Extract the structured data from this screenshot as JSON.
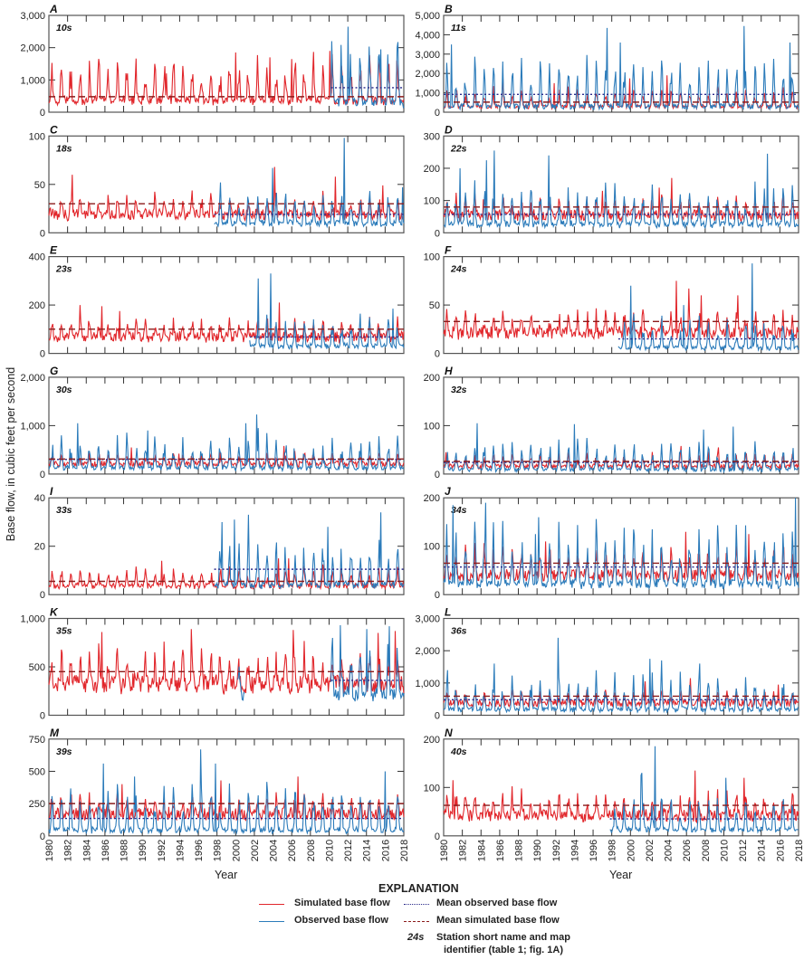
{
  "chart_data": {
    "type": "line",
    "ylabel": "Base flow, in cubic feet per second",
    "xlabel": "Year",
    "xlim": [
      1980,
      2018
    ],
    "xticks": [
      1980,
      1982,
      1984,
      1986,
      1988,
      1990,
      1992,
      1994,
      1996,
      1998,
      2000,
      2002,
      2004,
      2006,
      2008,
      2010,
      2012,
      2014,
      2016,
      2018
    ],
    "colors": {
      "simulated": "#e1262b",
      "observed": "#2b7bba",
      "mean_observed": "#2a2a8a",
      "mean_simulated": "#8b1a1a"
    },
    "panels": [
      {
        "letter": "A",
        "station": "10s",
        "ylim": [
          0,
          3000
        ],
        "yticks": [
          0,
          1000,
          2000,
          3000
        ],
        "ytick_labels": [
          "0",
          "1,000",
          "2,000",
          "3,000"
        ],
        "sim_base": 350,
        "sim_amp": 1300,
        "sim_peaks": [
          1700,
          1600,
          1850,
          1650,
          1250,
          1200,
          1100,
          1900,
          1200
        ],
        "mean_simulated": 480,
        "obs_start": 2010.2,
        "obs_end": 2018,
        "obs_base": 250,
        "obs_amp": 1800,
        "obs_peaks": [
          2200,
          1950,
          2650
        ],
        "mean_observed": 760,
        "obs_gap": null
      },
      {
        "letter": "B",
        "station": "11s",
        "ylim": [
          0,
          5000
        ],
        "yticks": [
          0,
          1000,
          2000,
          3000,
          4000,
          5000
        ],
        "ytick_labels": [
          "0",
          "1,000",
          "2,000",
          "3,000",
          "4,000",
          "5,000"
        ],
        "sim_base": 300,
        "sim_amp": 900,
        "sim_peaks": [
          1900,
          1750,
          1950,
          1500
        ],
        "mean_simulated": 520,
        "obs_start": 1980,
        "obs_end": 2018,
        "obs_base": 200,
        "obs_amp": 2200,
        "obs_peaks": [
          3500,
          3600,
          4350,
          4450,
          3600
        ],
        "mean_observed": 920,
        "obs_gap": null
      },
      {
        "letter": "C",
        "station": "18s",
        "ylim": [
          0,
          100
        ],
        "yticks": [
          0,
          50,
          100
        ],
        "ytick_labels": [
          "0",
          "50",
          "100"
        ],
        "sim_base": 22,
        "sim_amp": 18,
        "sim_peaks": [
          68,
          60,
          58,
          49
        ],
        "mean_simulated": 30,
        "obs_start": 1997.7,
        "obs_end": 2018,
        "obs_base": 10,
        "obs_amp": 30,
        "obs_peaks": [
          52,
          67,
          98,
          47
        ],
        "mean_observed": 19,
        "obs_gap": null
      },
      {
        "letter": "D",
        "station": "22s",
        "ylim": [
          0,
          300
        ],
        "yticks": [
          0,
          100,
          200,
          300
        ],
        "ytick_labels": [
          "0",
          "100",
          "200",
          "300"
        ],
        "sim_base": 65,
        "sim_amp": 50,
        "sim_peaks": [
          170,
          140,
          130
        ],
        "mean_simulated": 80,
        "obs_start": 1980,
        "obs_end": 2018,
        "obs_base": 25,
        "obs_amp": 110,
        "obs_peaks": [
          200,
          225,
          245,
          255,
          240
        ],
        "mean_observed": 57,
        "obs_gap": null
      },
      {
        "letter": "E",
        "station": "23s",
        "ylim": [
          0,
          400
        ],
        "yticks": [
          0,
          200,
          400
        ],
        "ytick_labels": [
          "0",
          "200",
          "400"
        ],
        "sim_base": 80,
        "sim_amp": 70,
        "sim_peaks": [
          210,
          195,
          200,
          175
        ],
        "mean_simulated": 100,
        "obs_start": 2001.5,
        "obs_end": 2018,
        "obs_base": 30,
        "obs_amp": 110,
        "obs_peaks": [
          310,
          185,
          330
        ],
        "mean_observed": 68,
        "obs_gap": null
      },
      {
        "letter": "F",
        "station": "24s",
        "ylim": [
          0,
          100
        ],
        "yticks": [
          0,
          50,
          100
        ],
        "ytick_labels": [
          "0",
          "50",
          "100"
        ],
        "sim_base": 25,
        "sim_amp": 20,
        "sim_peaks": [
          75,
          67,
          60,
          60
        ],
        "mean_simulated": 33,
        "obs_start": 1998.7,
        "obs_end": 2018,
        "obs_base": 5,
        "obs_amp": 30,
        "obs_peaks": [
          70,
          93,
          50
        ],
        "mean_observed": 15,
        "obs_gap": null
      },
      {
        "letter": "G",
        "station": "30s",
        "ylim": [
          0,
          2000
        ],
        "yticks": [
          0,
          1000,
          2000
        ],
        "ytick_labels": [
          "0",
          "1,000",
          "2,000"
        ],
        "sim_base": 240,
        "sim_amp": 200,
        "sim_peaks": [
          580,
          550,
          420
        ],
        "mean_simulated": 310,
        "obs_start": 1980,
        "obs_end": 2018,
        "obs_base": 120,
        "obs_amp": 600,
        "obs_peaks": [
          1050,
          1050,
          950,
          1230,
          900
        ],
        "mean_observed": 300,
        "obs_gap": null
      },
      {
        "letter": "H",
        "station": "32s",
        "ylim": [
          0,
          200
        ],
        "yticks": [
          0,
          100,
          200
        ],
        "ytick_labels": [
          "0",
          "100",
          "200"
        ],
        "sim_base": 18,
        "sim_amp": 25,
        "sim_peaks": [
          58,
          55,
          45
        ],
        "mean_simulated": 26,
        "obs_start": 1980,
        "obs_end": 2018,
        "obs_base": 8,
        "obs_amp": 55,
        "obs_peaks": [
          105,
          103,
          98,
          92
        ],
        "mean_observed": 24,
        "obs_gap": null
      },
      {
        "letter": "I",
        "station": "33s",
        "ylim": [
          0,
          40
        ],
        "yticks": [
          0,
          20,
          40
        ],
        "ytick_labels": [
          "0",
          "20",
          "40"
        ],
        "sim_base": 4,
        "sim_amp": 7,
        "sim_peaks": [
          15,
          14,
          15,
          12
        ],
        "mean_simulated": 5.5,
        "obs_start": 1997.7,
        "obs_end": 2018,
        "obs_base": 4,
        "obs_amp": 16,
        "obs_peaks": [
          31,
          33,
          30,
          34,
          28
        ],
        "mean_observed": 10.5,
        "obs_gap": null
      },
      {
        "letter": "J",
        "station": "34s",
        "ylim": [
          0,
          200
        ],
        "yticks": [
          0,
          100,
          200
        ],
        "ytick_labels": [
          "0",
          "100",
          "200"
        ],
        "sim_base": 45,
        "sim_amp": 55,
        "sim_peaks": [
          130,
          125,
          110
        ],
        "mean_simulated": 65,
        "obs_start": 1980,
        "obs_end": 2018,
        "obs_base": 20,
        "obs_amp": 110,
        "obs_peaks": [
          190,
          200,
          160,
          185,
          125
        ],
        "mean_observed": 57,
        "obs_gap": null
      },
      {
        "letter": "K",
        "station": "35s",
        "ylim": [
          0,
          1000
        ],
        "yticks": [
          0,
          500,
          1000
        ],
        "ytick_labels": [
          "0",
          "500",
          "1,000"
        ],
        "sim_base": 380,
        "sim_amp": 330,
        "sim_peaks": [
          880,
          890,
          850,
          870,
          860
        ],
        "mean_simulated": 450,
        "obs_start": 2010.2,
        "obs_end": 2018,
        "obs_base": 230,
        "obs_amp": 550,
        "obs_peaks": [
          930,
          920,
          890
        ],
        "mean_observed": 360,
        "obs_gap": [
          2000.2,
          2001.0
        ]
      },
      {
        "letter": "L",
        "station": "36s",
        "ylim": [
          0,
          3000
        ],
        "yticks": [
          0,
          1000,
          2000,
          3000
        ],
        "ytick_labels": [
          "0",
          "1,000",
          "2,000",
          "3,000"
        ],
        "sim_base": 450,
        "sim_amp": 350,
        "sim_peaks": [
          1150,
          950,
          1050
        ],
        "mean_simulated": 590,
        "obs_start": 1980,
        "obs_end": 2018,
        "obs_base": 150,
        "obs_amp": 1000,
        "obs_peaks": [
          1600,
          1700,
          1600,
          2400,
          1750,
          1400
        ],
        "mean_observed": 480,
        "obs_gap": null
      },
      {
        "letter": "M",
        "station": "39s",
        "ylim": [
          0,
          750
        ],
        "yticks": [
          0,
          250,
          500,
          750
        ],
        "ytick_labels": [
          "0",
          "250",
          "500",
          "750"
        ],
        "sim_base": 200,
        "sim_amp": 140,
        "sim_peaks": [
          460,
          430,
          400
        ],
        "mean_simulated": 250,
        "obs_start": 1980,
        "obs_end": 2018,
        "obs_base": 30,
        "obs_amp": 330,
        "obs_peaks": [
          560,
          670,
          500,
          560,
          460
        ],
        "mean_observed": 135,
        "obs_gap": null
      },
      {
        "letter": "N",
        "station": "40s",
        "ylim": [
          0,
          200
        ],
        "yticks": [
          0,
          100,
          200
        ],
        "ytick_labels": [
          "0",
          "100",
          "200"
        ],
        "sim_base": 50,
        "sim_amp": 40,
        "sim_peaks": [
          135,
          115,
          120
        ],
        "mean_simulated": 63,
        "obs_start": 1997.8,
        "obs_end": 2018,
        "obs_base": 12,
        "obs_amp": 60,
        "obs_peaks": [
          125,
          185,
          130,
          120
        ],
        "mean_observed": 35,
        "obs_gap": null
      }
    ]
  },
  "legend": {
    "title": "EXPLANATION",
    "simulated": "Simulated base flow",
    "observed": "Observed base flow",
    "mean_observed": "Mean observed base flow",
    "mean_simulated": "Mean simulated base flow",
    "station_code": "24s",
    "station_desc_line1": "Station short name and map",
    "station_desc_line2": "identifier (table 1; fig. 1A)"
  }
}
